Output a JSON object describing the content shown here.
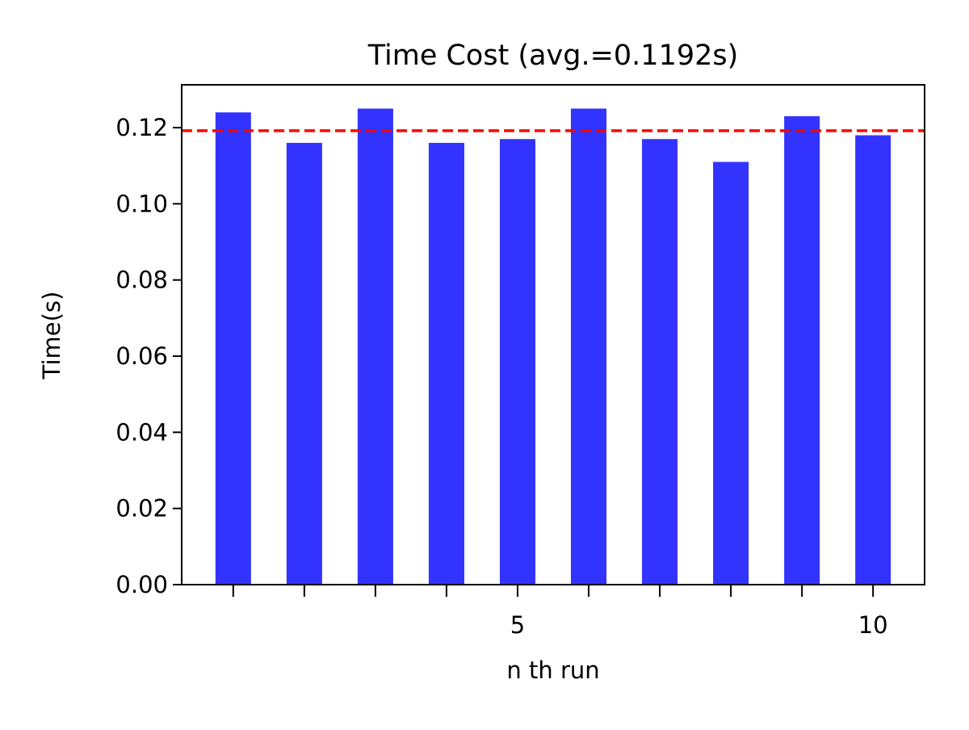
{
  "chart_data": {
    "type": "bar",
    "title": "Time Cost (avg.=0.1192s)",
    "xlabel": "n th run",
    "ylabel": "Time(s)",
    "x": [
      1,
      2,
      3,
      4,
      5,
      6,
      7,
      8,
      9,
      10
    ],
    "values": [
      0.124,
      0.116,
      0.125,
      0.116,
      0.117,
      0.125,
      0.117,
      0.111,
      0.123,
      0.118
    ],
    "xlim": [
      0.275,
      10.725
    ],
    "ylim": [
      0,
      0.13125
    ],
    "yticks": [
      0.0,
      0.02,
      0.04,
      0.06,
      0.08,
      0.1,
      0.12
    ],
    "ytick_labels": [
      "0.00",
      "0.02",
      "0.04",
      "0.06",
      "0.08",
      "0.10",
      "0.12"
    ],
    "xticks_minor": [
      1,
      2,
      3,
      4,
      6,
      7,
      8,
      9
    ],
    "xticks_major": [
      5,
      10
    ],
    "xtick_labels": [
      "5",
      "10"
    ],
    "bar_width": 0.5,
    "bar_color": "#3333ff",
    "average": 0.1192,
    "average_line_color": "#ff0000",
    "average_line_style": "dashed",
    "grid": false,
    "legend": "none"
  }
}
